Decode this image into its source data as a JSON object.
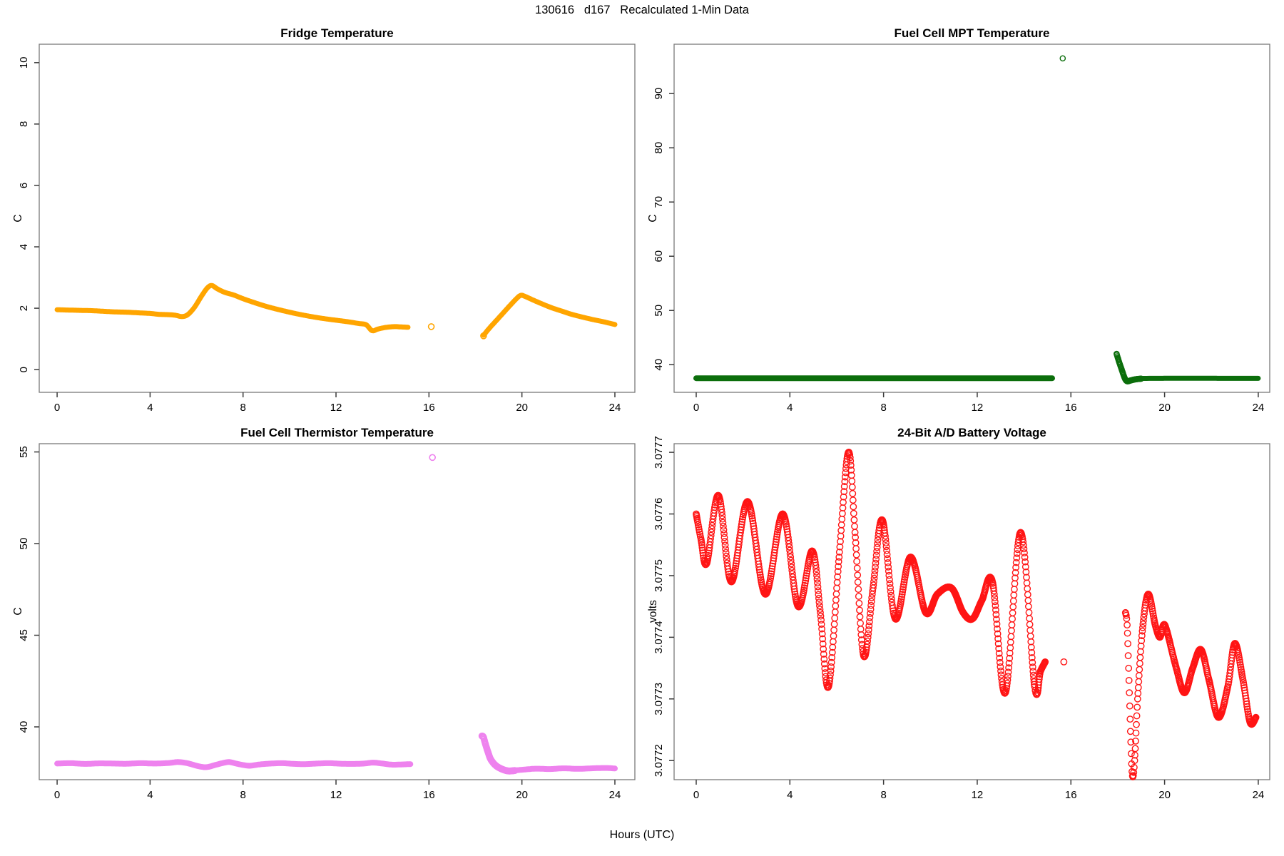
{
  "figure": {
    "title": "130616   d167   Recalculated 1-Min Data",
    "xlabel": "Hours (UTC)",
    "background": "#ffffff",
    "frame_color": "#7a7a7a",
    "tick_color": "#3a3a3a",
    "text_color": "#000000"
  },
  "chart_data": [
    {
      "id": "fridge-temperature",
      "type": "scatter",
      "title": "Fridge Temperature",
      "ylabel": "C",
      "color": "#FFA500",
      "marker": "open-circle",
      "marker_radius": 4,
      "marker_stroke": 1.6,
      "xlim": [
        -0.77,
        24.86
      ],
      "ylim": [
        -0.74,
        10.6
      ],
      "xticks": [
        0,
        4,
        8,
        12,
        16,
        20,
        24
      ],
      "xtick_labels": [
        "0",
        "4",
        "8",
        "12",
        "16",
        "20",
        "24"
      ],
      "yticks": [
        0,
        2,
        4,
        6,
        8,
        10
      ],
      "ytick_labels": [
        "0",
        "2",
        "4",
        "6",
        "8",
        "10"
      ],
      "render": [
        {
          "kind": "line",
          "width": 7,
          "points": [
            [
              0,
              1.95
            ],
            [
              0.5,
              1.94
            ],
            [
              1,
              1.93
            ],
            [
              1.5,
              1.92
            ],
            [
              2,
              1.9
            ],
            [
              2.5,
              1.88
            ],
            [
              3,
              1.87
            ],
            [
              3.5,
              1.85
            ],
            [
              4,
              1.83
            ],
            [
              4.4,
              1.8
            ],
            [
              4.8,
              1.79
            ],
            [
              5.1,
              1.77
            ],
            [
              5.35,
              1.73
            ],
            [
              5.6,
              1.78
            ],
            [
              5.9,
              2.02
            ],
            [
              6.2,
              2.38
            ],
            [
              6.45,
              2.65
            ],
            [
              6.65,
              2.74
            ],
            [
              6.9,
              2.63
            ],
            [
              7.2,
              2.52
            ],
            [
              7.6,
              2.43
            ],
            [
              8,
              2.31
            ],
            [
              8.5,
              2.18
            ],
            [
              9,
              2.06
            ],
            [
              9.5,
              1.96
            ],
            [
              10,
              1.87
            ],
            [
              10.5,
              1.79
            ],
            [
              11,
              1.72
            ],
            [
              11.5,
              1.66
            ],
            [
              12,
              1.61
            ],
            [
              12.5,
              1.56
            ],
            [
              13,
              1.5
            ],
            [
              13.3,
              1.46
            ],
            [
              13.55,
              1.27
            ],
            [
              13.8,
              1.32
            ],
            [
              14.1,
              1.37
            ],
            [
              14.5,
              1.4
            ],
            [
              14.8,
              1.39
            ],
            [
              15.1,
              1.38
            ]
          ]
        },
        {
          "kind": "point",
          "x": 16.1,
          "y": 1.4
        },
        {
          "kind": "point",
          "x": 18.35,
          "y": 1.1
        },
        {
          "kind": "line",
          "width": 7,
          "points": [
            [
              18.35,
              1.12
            ],
            [
              18.6,
              1.35
            ],
            [
              18.9,
              1.6
            ],
            [
              19.2,
              1.85
            ],
            [
              19.5,
              2.1
            ],
            [
              19.75,
              2.3
            ],
            [
              19.95,
              2.42
            ],
            [
              20.15,
              2.38
            ],
            [
              20.5,
              2.26
            ],
            [
              20.9,
              2.13
            ],
            [
              21.3,
              2.01
            ],
            [
              21.7,
              1.91
            ],
            [
              22.1,
              1.81
            ],
            [
              22.5,
              1.73
            ],
            [
              23,
              1.64
            ],
            [
              23.5,
              1.56
            ],
            [
              24,
              1.47
            ]
          ]
        }
      ]
    },
    {
      "id": "fuel-cell-mpt-temperature",
      "type": "scatter",
      "title": "Fuel Cell MPT Temperature",
      "ylabel": "C",
      "color": "#0b6e0b",
      "marker": "open-circle",
      "marker_radius": 3.6,
      "marker_stroke": 1.4,
      "xlim": [
        -0.944,
        24.49
      ],
      "ylim": [
        34.9,
        99.1
      ],
      "xticks": [
        0,
        4,
        8,
        12,
        16,
        20,
        24
      ],
      "xtick_labels": [
        "0",
        "4",
        "8",
        "12",
        "16",
        "20",
        "24"
      ],
      "yticks": [
        40,
        50,
        60,
        70,
        80,
        90
      ],
      "ytick_labels": [
        "40",
        "50",
        "60",
        "70",
        "80",
        "90"
      ],
      "render": [
        {
          "kind": "line",
          "width": 8,
          "points": [
            [
              0,
              37.5
            ],
            [
              15.2,
              37.5
            ]
          ]
        },
        {
          "kind": "point",
          "x": 15.65,
          "y": 96.5
        },
        {
          "kind": "circles",
          "points": [
            [
              17.95,
              42.0
            ],
            [
              18.0,
              41.3
            ],
            [
              18.05,
              40.6
            ],
            [
              18.12,
              39.7
            ],
            [
              18.2,
              38.7
            ],
            [
              18.3,
              37.5
            ],
            [
              18.4,
              36.95
            ],
            [
              18.55,
              37.1
            ],
            [
              18.75,
              37.3
            ],
            [
              19.0,
              37.42
            ]
          ]
        },
        {
          "kind": "line",
          "width": 7,
          "points": [
            [
              18.85,
              37.38
            ],
            [
              19.5,
              37.48
            ],
            [
              24,
              37.48
            ]
          ]
        }
      ]
    },
    {
      "id": "fuel-cell-thermistor-temperature",
      "type": "scatter",
      "title": "Fuel Cell Thermistor Temperature",
      "ylabel": "C",
      "color": "#EE82EE",
      "marker": "open-circle",
      "marker_radius": 4,
      "marker_stroke": 1.6,
      "xlim": [
        -0.77,
        24.86
      ],
      "ylim": [
        37.12,
        55.45
      ],
      "xticks": [
        0,
        4,
        8,
        12,
        16,
        20,
        24
      ],
      "xtick_labels": [
        "0",
        "4",
        "8",
        "12",
        "16",
        "20",
        "24"
      ],
      "yticks": [
        40,
        45,
        50,
        55
      ],
      "ytick_labels": [
        "40",
        "45",
        "50",
        "55"
      ],
      "render": [
        {
          "kind": "line",
          "width": 8,
          "points": [
            [
              0,
              38.0
            ],
            [
              0.6,
              38.02
            ],
            [
              1.2,
              37.98
            ],
            [
              1.8,
              38.01
            ],
            [
              2.4,
              38.0
            ],
            [
              3.0,
              37.99
            ],
            [
              3.6,
              38.02
            ],
            [
              4.2,
              38.0
            ],
            [
              4.8,
              38.03
            ],
            [
              5.2,
              38.08
            ],
            [
              5.6,
              38.02
            ],
            [
              6.0,
              37.88
            ],
            [
              6.4,
              37.8
            ],
            [
              6.8,
              37.92
            ],
            [
              7.1,
              38.02
            ],
            [
              7.4,
              38.08
            ],
            [
              7.7,
              38.0
            ],
            [
              8.0,
              37.92
            ],
            [
              8.3,
              37.88
            ],
            [
              8.7,
              37.95
            ],
            [
              9.2,
              38.0
            ],
            [
              9.7,
              38.02
            ],
            [
              10.2,
              37.98
            ],
            [
              10.7,
              37.97
            ],
            [
              11.2,
              38.0
            ],
            [
              11.7,
              38.02
            ],
            [
              12.2,
              37.99
            ],
            [
              12.7,
              37.98
            ],
            [
              13.2,
              38.0
            ],
            [
              13.6,
              38.05
            ],
            [
              14.0,
              38.0
            ],
            [
              14.4,
              37.94
            ],
            [
              14.8,
              37.95
            ],
            [
              15.2,
              37.97
            ]
          ]
        },
        {
          "kind": "point",
          "x": 16.15,
          "y": 54.7
        },
        {
          "kind": "circles",
          "points": [
            [
              18.28,
              39.5
            ],
            [
              18.34,
              39.45
            ],
            [
              18.42,
              39.1
            ],
            [
              18.52,
              38.7
            ],
            [
              18.65,
              38.25
            ],
            [
              18.85,
              37.92
            ],
            [
              19.1,
              37.72
            ],
            [
              19.4,
              37.6
            ],
            [
              19.7,
              37.62
            ]
          ]
        },
        {
          "kind": "line",
          "width": 8,
          "points": [
            [
              19.4,
              37.6
            ],
            [
              20,
              37.66
            ],
            [
              20.6,
              37.72
            ],
            [
              21.2,
              37.7
            ],
            [
              21.8,
              37.74
            ],
            [
              22.4,
              37.71
            ],
            [
              23,
              37.74
            ],
            [
              23.6,
              37.76
            ],
            [
              24,
              37.73
            ]
          ]
        }
      ]
    },
    {
      "id": "battery-voltage",
      "type": "scatter",
      "title": "24-Bit A/D Battery Voltage",
      "ylabel": "volts",
      "color": "#FF1414",
      "marker": "open-circle",
      "marker_radius": 4.2,
      "marker_stroke": 1.4,
      "xlim": [
        -0.944,
        24.49
      ],
      "ylim": [
        3.077169,
        3.077714
      ],
      "xticks": [
        0,
        4,
        8,
        12,
        16,
        20,
        24
      ],
      "xtick_labels": [
        "0",
        "4",
        "8",
        "12",
        "16",
        "20",
        "24"
      ],
      "yticks": [
        3.0772,
        3.0773,
        3.0774,
        3.0775,
        3.0776,
        3.0777
      ],
      "ytick_labels": [
        "3.0772",
        "3.0773",
        "3.0774",
        "3.0775",
        "3.0776",
        "3.0777"
      ],
      "render": [
        {
          "kind": "circles",
          "points": [
            [
              0,
              3.0776
            ],
            [
              0.2,
              3.07756
            ],
            [
              0.45,
              3.07752
            ],
            [
              0.95,
              3.07763
            ],
            [
              1.5,
              3.07749
            ],
            [
              2.2,
              3.07762
            ],
            [
              2.95,
              3.07747
            ],
            [
              3.7,
              3.0776
            ],
            [
              4.35,
              3.07745
            ],
            [
              4.95,
              3.07754
            ],
            [
              5.3,
              3.07744
            ],
            [
              5.65,
              3.07732
            ],
            [
              6.1,
              3.07753
            ],
            [
              6.5,
              3.0777
            ],
            [
              6.78,
              3.07757
            ],
            [
              7.15,
              3.07737
            ],
            [
              7.55,
              3.07748
            ],
            [
              7.95,
              3.07759
            ],
            [
              8.5,
              3.07743
            ],
            [
              9.15,
              3.07753
            ],
            [
              9.8,
              3.07744
            ],
            [
              10.3,
              3.07747
            ],
            [
              10.9,
              3.07748
            ],
            [
              11.4,
              3.07744
            ],
            [
              11.8,
              3.07743
            ],
            [
              12.2,
              3.07746
            ],
            [
              12.65,
              3.07749
            ],
            [
              13.2,
              3.07731
            ],
            [
              13.85,
              3.07757
            ],
            [
              14.45,
              3.07732
            ],
            [
              14.7,
              3.077345
            ],
            [
              14.9,
              3.07736
            ]
          ]
        },
        {
          "kind": "point",
          "x": 15.7,
          "y": 3.07736
        },
        {
          "kind": "circles",
          "points": [
            [
              18.33,
              3.07744
            ],
            [
              18.4,
              3.07742
            ],
            [
              18.48,
              3.07733
            ],
            [
              18.56,
              3.07723
            ],
            [
              18.63,
              3.077175
            ],
            [
              18.72,
              3.0772
            ],
            [
              18.85,
              3.0773
            ],
            [
              19.05,
              3.07741
            ],
            [
              19.3,
              3.07747
            ],
            [
              19.6,
              3.07742
            ],
            [
              19.8,
              3.0774
            ],
            [
              19.95,
              3.07742
            ],
            [
              20.1,
              3.07741
            ],
            [
              20.5,
              3.07735
            ],
            [
              20.85,
              3.07731
            ],
            [
              21.2,
              3.07735
            ],
            [
              21.55,
              3.07738
            ],
            [
              21.9,
              3.07733
            ],
            [
              22.3,
              3.07727
            ],
            [
              22.7,
              3.07732
            ],
            [
              23.0,
              3.07739
            ],
            [
              23.35,
              3.07733
            ],
            [
              23.65,
              3.077262
            ],
            [
              23.9,
              3.07727
            ]
          ]
        }
      ]
    }
  ]
}
